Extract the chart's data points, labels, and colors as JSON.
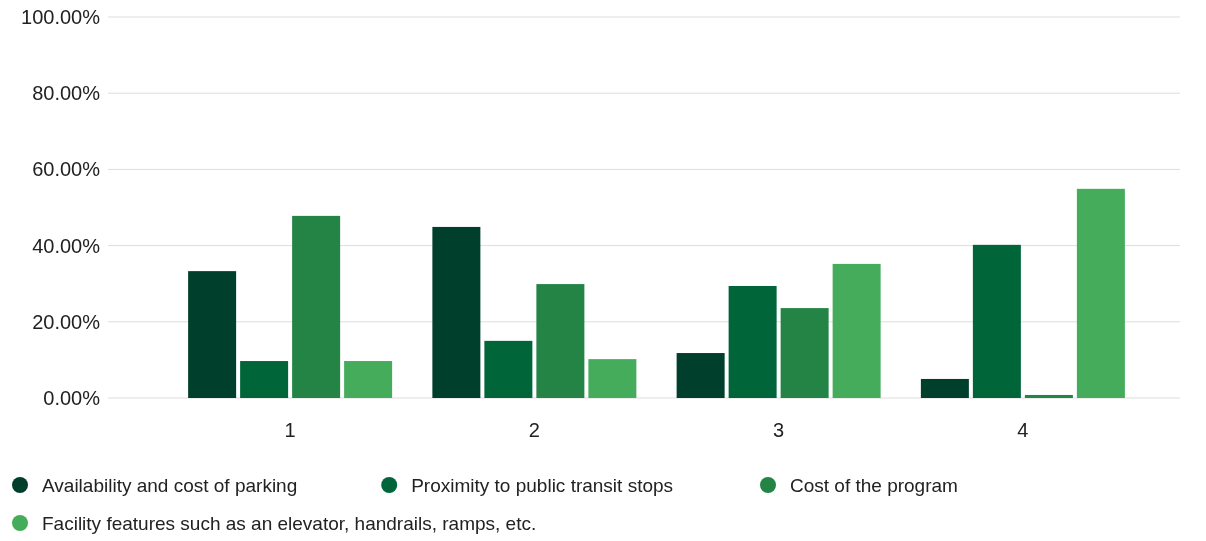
{
  "chart_data": {
    "type": "bar",
    "categories": [
      "1",
      "2",
      "3",
      "4"
    ],
    "series": [
      {
        "name": "Availability and cost of parking",
        "color": "#003f2b",
        "values": [
          33.3,
          44.9,
          11.8,
          5.0
        ]
      },
      {
        "name": "Proximity to public transit stops",
        "color": "#00663a",
        "values": [
          9.7,
          15.0,
          29.4,
          40.2
        ]
      },
      {
        "name": "Cost of the program",
        "color": "#248446",
        "values": [
          47.8,
          29.9,
          23.6,
          0.8
        ]
      },
      {
        "name": "Facility features such as an elevator, handrails, ramps, etc.",
        "color": "#44ac5a",
        "values": [
          9.7,
          10.2,
          35.2,
          54.9
        ]
      }
    ],
    "ylim": [
      0,
      100
    ],
    "yticks": [
      {
        "value": 0,
        "label": "0.00%"
      },
      {
        "value": 20,
        "label": "20.00%"
      },
      {
        "value": 40,
        "label": "40.00%"
      },
      {
        "value": 60,
        "label": "60.00%"
      },
      {
        "value": 80,
        "label": "80.00%"
      },
      {
        "value": 100,
        "label": "100.00%"
      }
    ],
    "grid": "y",
    "legend": "bottom"
  }
}
